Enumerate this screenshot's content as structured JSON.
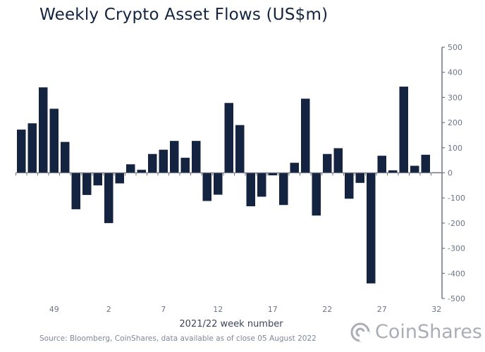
{
  "chart_data": {
    "type": "bar",
    "title": "Weekly Crypto Asset Flows (US$m)",
    "xlabel": "2021/22 week number",
    "ylabel": "",
    "ylim": [
      -500,
      500
    ],
    "yticks": [
      500,
      400,
      300,
      200,
      100,
      0,
      -100,
      -200,
      -300,
      -400,
      -500
    ],
    "xtick_labels": [
      "49",
      "2",
      "7",
      "12",
      "17",
      "22",
      "27",
      "32"
    ],
    "categories": [
      "46",
      "47",
      "48",
      "49",
      "50",
      "51",
      "52",
      "1",
      "2",
      "3",
      "4",
      "5",
      "6",
      "7",
      "8",
      "9",
      "10",
      "11",
      "12",
      "13",
      "14",
      "15",
      "16",
      "17",
      "18",
      "19",
      "20",
      "21",
      "22",
      "23",
      "24",
      "25",
      "26",
      "27",
      "28",
      "29",
      "30",
      "31",
      "32"
    ],
    "values": [
      172,
      197,
      340,
      255,
      123,
      -145,
      -88,
      -50,
      -200,
      -42,
      34,
      12,
      75,
      92,
      127,
      60,
      127,
      -112,
      -87,
      278,
      190,
      -133,
      -95,
      -10,
      -128,
      40,
      295,
      -170,
      75,
      98,
      -103,
      -40,
      -440,
      68,
      10,
      343,
      28,
      72,
      2
    ],
    "grid": false,
    "y_axis_side": "right",
    "bar_color": "#14233f"
  },
  "footer": {
    "source": "Source: Bloomberg, CoinShares, data available as of close 05 August 2022",
    "logo_text": "CoinShares"
  }
}
